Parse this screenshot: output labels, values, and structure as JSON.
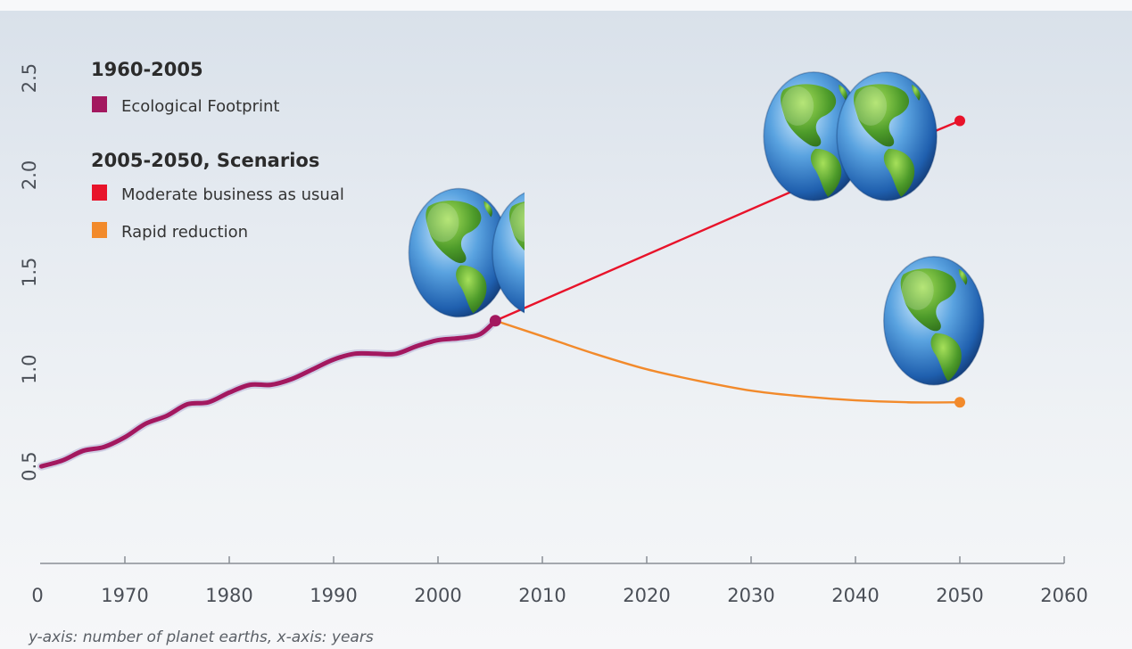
{
  "chart_data": {
    "type": "line",
    "caption": "y-axis: number of planet earths, x-axis: years",
    "xlim": [
      1960,
      2060
    ],
    "ylim": [
      0.0,
      2.7
    ],
    "x_ticks": [
      1970,
      1980,
      1990,
      2000,
      2010,
      2020,
      2030,
      2040,
      2050,
      2060
    ],
    "x_origin_label": "0",
    "y_ticks": [
      0.5,
      1.0,
      1.5,
      2.0,
      2.5
    ],
    "y_tick_labels": [
      "0.5",
      "1.0",
      "1.5",
      "2.0",
      "2.5"
    ],
    "grid": false,
    "legend": {
      "placement": "top-left",
      "groups": [
        {
          "heading": "1960-2005",
          "items": [
            {
              "label": "Ecological Footprint",
              "color": "#a3185f"
            }
          ]
        },
        {
          "heading": "2005-2050, Scenarios",
          "items": [
            {
              "label": "Moderate business as usual",
              "color": "#e8132a"
            },
            {
              "label": "Rapid reduction",
              "color": "#f28a2b"
            }
          ]
        }
      ]
    },
    "series": [
      {
        "name": "Ecological Footprint",
        "color": "#a3185f",
        "x": [
          1962,
          1964,
          1966,
          1968,
          1970,
          1972,
          1974,
          1976,
          1978,
          1980,
          1982,
          1984,
          1986,
          1988,
          1990,
          1992,
          1994,
          1996,
          1998,
          2000,
          2002,
          2004,
          2005.5
        ],
        "y": [
          0.5,
          0.53,
          0.58,
          0.6,
          0.65,
          0.72,
          0.76,
          0.82,
          0.83,
          0.88,
          0.92,
          0.92,
          0.95,
          1.0,
          1.05,
          1.08,
          1.08,
          1.08,
          1.12,
          1.15,
          1.16,
          1.18,
          1.25
        ]
      },
      {
        "name": "Moderate business as usual",
        "color": "#e8132a",
        "x": [
          2005.5,
          2037.5,
          2050
        ],
        "y": [
          1.25,
          2.0,
          2.28
        ],
        "markers_at": [
          2005.5,
          2037.5,
          2050
        ]
      },
      {
        "name": "Rapid reduction",
        "color": "#f28a2b",
        "x": [
          2005.5,
          2010,
          2015,
          2020,
          2025,
          2030,
          2035,
          2040,
          2045,
          2050
        ],
        "y": [
          1.25,
          1.17,
          1.08,
          1.0,
          0.94,
          0.89,
          0.86,
          0.84,
          0.83,
          0.83
        ],
        "markers_at": [
          2050
        ]
      }
    ],
    "globes": [
      {
        "name": "globe-2005-full",
        "x": 2002.0,
        "y": 1.6,
        "clip": "none"
      },
      {
        "name": "globe-2005-partial",
        "x": 2010.0,
        "y": 1.6,
        "clip": "right"
      },
      {
        "name": "globe-2040-a",
        "x": 2036.0,
        "y": 2.2,
        "clip": "none"
      },
      {
        "name": "globe-2040-b",
        "x": 2043.0,
        "y": 2.2,
        "clip": "none"
      },
      {
        "name": "globe-2050",
        "x": 2047.5,
        "y": 1.25,
        "clip": "none"
      }
    ]
  }
}
